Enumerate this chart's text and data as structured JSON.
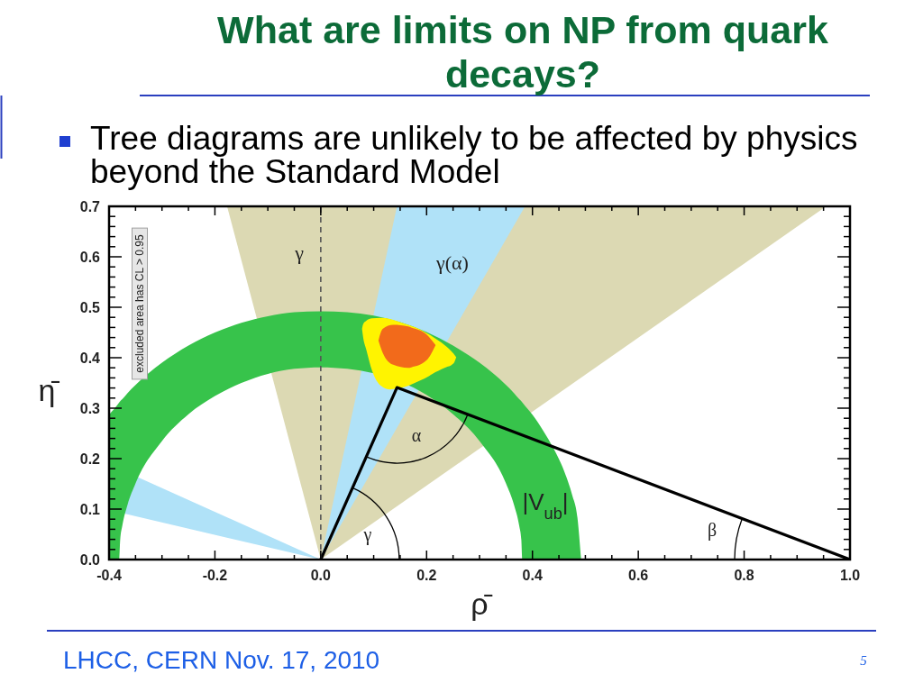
{
  "chart_data": {
    "type": "line",
    "title": "What are limits on NP from quark decays?",
    "subtitle": "Tree diagrams are unlikely to be affected by physics beyond the Standard Model",
    "xlabel": "ρ̄",
    "ylabel": "η̄",
    "xlim": [
      -0.4,
      1
    ],
    "ylim": [
      0,
      0.7
    ],
    "xticks": [
      -0.4,
      {
        "value": -0.35,
        "label": null
      },
      {
        "value": -0.3,
        "label": null
      },
      {
        "value": -0.25,
        "label": null
      },
      -0.2,
      {
        "value": -0.15,
        "label": null
      },
      {
        "value": -0.1,
        "label": null
      },
      {
        "value": -0.05,
        "label": null
      },
      {
        "value": 0,
        "label": "0.0"
      },
      {
        "value": 0.05,
        "label": null
      },
      {
        "value": 0.1,
        "label": null
      },
      {
        "value": 0.15,
        "label": null
      },
      0.2,
      {
        "value": 0.25,
        "label": null
      },
      {
        "value": 0.3,
        "label": null
      },
      {
        "value": 0.35,
        "label": null
      },
      0.4,
      {
        "value": 0.45,
        "label": null
      },
      {
        "value": 0.5,
        "label": null
      },
      {
        "value": 0.55,
        "label": null
      },
      0.6,
      {
        "value": 0.65,
        "label": null
      },
      {
        "value": 0.7,
        "label": null
      },
      {
        "value": 0.75,
        "label": null
      },
      0.8,
      {
        "value": 0.85,
        "label": null
      },
      {
        "value": 0.9,
        "label": null
      },
      {
        "value": 0.95,
        "label": null
      },
      {
        "value": 1,
        "label": "1.0"
      }
    ],
    "yticks": [
      {
        "value": 0,
        "label": "0.0"
      },
      {
        "value": 0.02,
        "label": null
      },
      {
        "value": 0.04,
        "label": null
      },
      {
        "value": 0.06,
        "label": null
      },
      {
        "value": 0.08,
        "label": null
      },
      0.1,
      {
        "value": 0.12,
        "label": null
      },
      {
        "value": 0.14,
        "label": null
      },
      {
        "value": 0.16,
        "label": null
      },
      {
        "value": 0.18,
        "label": null
      },
      0.2,
      {
        "value": 0.22,
        "label": null
      },
      {
        "value": 0.24,
        "label": null
      },
      {
        "value": 0.26,
        "label": null
      },
      {
        "value": 0.28,
        "label": null
      },
      0.3,
      {
        "value": 0.32,
        "label": null
      },
      {
        "value": 0.34,
        "label": null
      },
      {
        "value": 0.36,
        "label": null
      },
      {
        "value": 0.38,
        "label": null
      },
      0.4,
      {
        "value": 0.42,
        "label": null
      },
      {
        "value": 0.44,
        "label": null
      },
      {
        "value": 0.46,
        "label": null
      },
      {
        "value": 0.48,
        "label": null
      },
      0.5,
      {
        "value": 0.52,
        "label": null
      },
      {
        "value": 0.54,
        "label": null
      },
      {
        "value": 0.56,
        "label": null
      },
      {
        "value": 0.58,
        "label": null
      },
      0.6,
      {
        "value": 0.62,
        "label": null
      },
      {
        "value": 0.64,
        "label": null
      },
      {
        "value": 0.66,
        "label": null
      },
      {
        "value": 0.68,
        "label": null
      },
      0.7
    ],
    "series": [
      {
        "color": "#dcd9b3",
        "x": [
          -0.177,
          0,
          0.955
        ],
        "values": [
          null,
          null,
          null
        ],
        "lower": [
          0.7,
          0,
          0.7
        ],
        "upper": [
          0.7,
          0.7,
          0.7
        ]
      },
      {
        "color": "#b0e2f8",
        "x": [
          0,
          0.144,
          0.386
        ],
        "values": [
          null,
          null,
          null
        ],
        "lower": [
          0,
          0.261,
          0.7
        ],
        "upper": [
          0,
          0.7,
          0.7
        ]
      },
      {
        "color": "#b0e2f8",
        "x": [
          -0.4,
          0
        ],
        "values": [
          null,
          null
        ],
        "lower": [
          0.098,
          0
        ],
        "upper": [
          0.189,
          0
        ]
      },
      {
        "color": "#37c34b",
        "x": [
          -0.4,
          -0.381,
          -0.379,
          -0.375,
          -0.365,
          -0.35,
          -0.3,
          -0.25,
          -0.2,
          -0.15,
          -0.1,
          -0.05,
          0,
          0.05,
          0.25,
          0.3,
          0.35,
          0.365,
          0.375,
          0.379,
          0.381,
          0.4,
          0.42,
          0.44,
          0.46,
          0.475,
          0.485,
          0.492
        ],
        "values": [
          null,
          null,
          null,
          null,
          null,
          null,
          null,
          null,
          null,
          null,
          null,
          null,
          null,
          null,
          null,
          null,
          null,
          null,
          null,
          null,
          null,
          null,
          null,
          null,
          null,
          null,
          null,
          null
        ],
        "lower": [
          0,
          0,
          0.039,
          0.067,
          0.109,
          0.151,
          0.235,
          0.288,
          0.324,
          0.35,
          0.368,
          0.378,
          0.381,
          0.378,
          0.288,
          0.235,
          0.151,
          0.109,
          0.067,
          0.039,
          0,
          0,
          0,
          0,
          0,
          0,
          0,
          0
        ],
        "upper": [
          0.287,
          0.311,
          0.314,
          0.318,
          0.33,
          0.346,
          0.39,
          0.424,
          0.45,
          0.469,
          0.482,
          0.49,
          0.492,
          0.49,
          0.424,
          0.39,
          0.346,
          0.33,
          0.318,
          0.314,
          0.311,
          0.287,
          0.256,
          0.22,
          0.175,
          0.128,
          0.083,
          0
        ]
      },
      {
        "color": "#fff400",
        "x": [
          0.078,
          0.08,
          0.086,
          0.097,
          0.114,
          0.131,
          0.137,
          0.165,
          0.171,
          0.205,
          0.211,
          0.234,
          0.251,
          0.256
        ],
        "values": [
          null,
          null,
          null,
          null,
          null,
          null,
          null,
          null,
          null,
          null,
          null,
          null,
          null,
          null
        ],
        "lower": [
          0.457,
          0.441,
          0.416,
          0.374,
          0.344,
          0.337,
          0.338,
          0.344,
          0.347,
          0.364,
          0.368,
          0.38,
          0.389,
          0.401
        ],
        "upper": [
          0.457,
          0.466,
          0.473,
          0.478,
          0.479,
          0.477,
          0.475,
          0.465,
          0.463,
          0.446,
          0.442,
          0.425,
          0.408,
          0.401
        ]
      },
      {
        "color": "#f26a1b",
        "x": [
          0.109,
          0.117,
          0.137,
          0.165,
          0.171,
          0.2,
          0.217
        ],
        "values": [
          null,
          null,
          null,
          null,
          null,
          null,
          null
        ],
        "lower": [
          0.434,
          0.41,
          0.386,
          0.38,
          0.381,
          0.395,
          0.425
        ],
        "upper": [
          0.434,
          0.457,
          0.465,
          0.462,
          0.46,
          0.446,
          0.425
        ]
      },
      {
        "color": "#000000",
        "x": [
          0,
          0.144,
          1
        ],
        "values": [
          0,
          0.341,
          0
        ]
      }
    ],
    "ref_lines": [
      {
        "axis": "x",
        "value": 0,
        "color": "#555555",
        "line_style": "dashed"
      }
    ],
    "annotations": [
      "excluded area has CL > 0.95",
      "LHCC, CERN Nov. 17, 2010",
      "5",
      "γ",
      "γ(α)",
      "α",
      "γ",
      "β",
      "|V$_{ub}$|"
    ]
  }
}
